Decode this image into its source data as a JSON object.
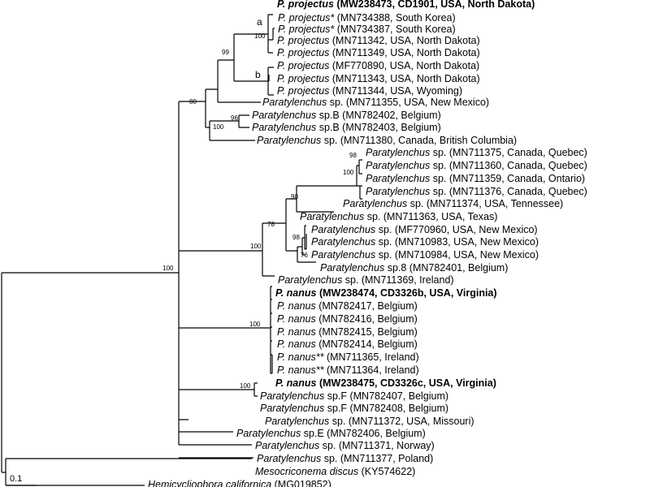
{
  "tree": {
    "scale_bar_label": "0.1",
    "taxa": [
      {
        "id": "t0",
        "species": "P. projectus",
        "rest": " (MW238473, CD1901, USA, North Dakota)",
        "bold": true
      },
      {
        "id": "t1",
        "species": "P. projectus*",
        "rest": " (MN734388, South Korea)",
        "bold": false
      },
      {
        "id": "t2",
        "species": "P. projectus*",
        "rest": " (MN734387, South Korea)",
        "bold": false
      },
      {
        "id": "t3",
        "species": "P. projectus",
        "rest": " (MN711342, USA, North Dakota)",
        "bold": false
      },
      {
        "id": "t4",
        "species": "P. projectus",
        "rest": " (MN711349, USA, North Dakota)",
        "bold": false
      },
      {
        "id": "t5",
        "species": "P. projectus",
        "rest": " (MF770890, USA, North Dakota)",
        "bold": false
      },
      {
        "id": "t6",
        "species": "P. projectus",
        "rest": " (MN711343, USA, North Dakota)",
        "bold": false
      },
      {
        "id": "t7",
        "species": "P. projectus",
        "rest": " (MN711344, USA, Wyoming)",
        "bold": false
      },
      {
        "id": "t8",
        "species": "Paratylenchus",
        "rest": " sp. (MN711355, USA, New Mexico)",
        "bold": false
      },
      {
        "id": "t9",
        "species": "Paratylenchus",
        "rest": " sp.B (MN782402, Belgium)",
        "bold": false
      },
      {
        "id": "t10",
        "species": "Paratylenchus",
        "rest": " sp.B (MN782403, Belgium)",
        "bold": false
      },
      {
        "id": "t11",
        "species": "Paratylenchus",
        "rest": " sp. (MN711380, Canada, British Columbia)",
        "bold": false
      },
      {
        "id": "t12",
        "species": "Paratylenchus",
        "rest": " sp. (MN711375, Canada, Quebec)",
        "bold": false
      },
      {
        "id": "t13",
        "species": "Paratylenchus",
        "rest": " sp. (MN711360, Canada, Quebec)",
        "bold": false
      },
      {
        "id": "t14",
        "species": "Paratylenchus",
        "rest": " sp. (MN711359, Canada, Ontario)",
        "bold": false
      },
      {
        "id": "t15",
        "species": "Paratylenchus",
        "rest": " sp. (MN711376, Canada, Quebec)",
        "bold": false
      },
      {
        "id": "t16",
        "species": "Paratylenchus",
        "rest": " sp. (MN711374,  USA, Tennessee)",
        "bold": false
      },
      {
        "id": "t17",
        "species": "Paratylenchus",
        "rest": " sp. (MN711363, USA, Texas)",
        "bold": false
      },
      {
        "id": "t18",
        "species": "Paratylenchus",
        "rest": " sp. (MF770960, USA, New Mexico)",
        "bold": false
      },
      {
        "id": "t19",
        "species": "Paratylenchus",
        "rest": " sp. (MN710983, USA, New Mexico)",
        "bold": false
      },
      {
        "id": "t20",
        "species": "Paratylenchus",
        "rest": " sp. (MN710984, USA, New Mexico)",
        "bold": false
      },
      {
        "id": "t21",
        "species": "Paratylenchus",
        "rest": " sp.8 (MN782401, Belgium)",
        "bold": false
      },
      {
        "id": "t22",
        "species": "Paratylenchus",
        "rest": " sp. (MN711369, Ireland)",
        "bold": false
      },
      {
        "id": "t23",
        "species": "P. nanus",
        "rest": " (MW238474, CD3326b, USA, Virginia)",
        "bold": true
      },
      {
        "id": "t24",
        "species": "P. nanus",
        "rest": " (MN782417, Belgium)",
        "bold": false
      },
      {
        "id": "t25",
        "species": "P. nanus",
        "rest": " (MN782416, Belgium)",
        "bold": false
      },
      {
        "id": "t26",
        "species": "P. nanus",
        "rest": " (MN782415, Belgium)",
        "bold": false
      },
      {
        "id": "t27",
        "species": "P. nanus",
        "rest": " (MN782414, Belgium)",
        "bold": false
      },
      {
        "id": "t28",
        "species": "P. nanus**",
        "rest": " (MN711365, Ireland)",
        "bold": false
      },
      {
        "id": "t29",
        "species": "P. nanus**",
        "rest": " (MN711364, Ireland)",
        "bold": false
      },
      {
        "id": "t30",
        "species": "P. nanus",
        "rest": " (MW238475, CD3326c, USA, Virginia)",
        "bold": true
      },
      {
        "id": "t31",
        "species": "Paratylenchus",
        "rest": " sp.F (MN782407, Belgium)",
        "bold": false
      },
      {
        "id": "t32",
        "species": "Paratylenchus",
        "rest": " sp.F (MN782408, Belgium)",
        "bold": false
      },
      {
        "id": "t33",
        "species": "Paratylenchus",
        "rest": " sp. (MN711372, USA, Missouri)",
        "bold": false
      },
      {
        "id": "t34",
        "species": "Paratylenchus",
        "rest": " sp.E (MN782406, Belgium)",
        "bold": false
      },
      {
        "id": "t35",
        "species": "Paratylenchus",
        "rest": " sp. (MN711371, Norway)",
        "bold": false
      },
      {
        "id": "t36",
        "species": "Paratylenchus",
        "rest": " sp. (MN711377, Poland)",
        "bold": false
      },
      {
        "id": "t37",
        "species": "Mesocriconema discus",
        "rest": " (KY574622)",
        "bold": false
      },
      {
        "id": "t38",
        "species": "Hemicycliophora californica",
        "rest": " (MG019852)",
        "bold": false
      }
    ],
    "support_values": [
      "100",
      "99",
      "80",
      "96",
      "100",
      "98",
      "100",
      "90",
      "78",
      "98",
      "76",
      "100",
      "100",
      "100"
    ],
    "clade_labels": [
      "a",
      "b"
    ]
  }
}
